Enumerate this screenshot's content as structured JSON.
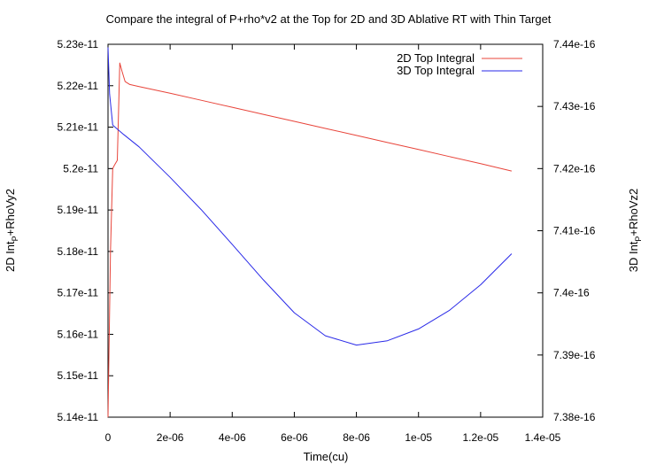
{
  "chart_data": {
    "type": "line",
    "title": "Compare the integral of P+rho*v2 at the Top for 2D and 3D Ablative RT with Thin Target",
    "xlabel": "Time(cu)",
    "ylabel_left": {
      "pre": "2D Int",
      "sub": "P",
      "post": "+RhoVy2"
    },
    "ylabel_right": {
      "pre": "3D Int",
      "sub": "P",
      "post": "+RhoVz2"
    },
    "xlim": [
      0,
      1.4e-05
    ],
    "ylim_left": [
      5.14e-11,
      5.23e-11
    ],
    "ylim_right": [
      7.38e-16,
      7.44e-16
    ],
    "xticks": [
      {
        "value": 0,
        "label": "0"
      },
      {
        "value": 2e-06,
        "label": "2e-06"
      },
      {
        "value": 4e-06,
        "label": "4e-06"
      },
      {
        "value": 6e-06,
        "label": "6e-06"
      },
      {
        "value": 8e-06,
        "label": "8e-06"
      },
      {
        "value": 1e-05,
        "label": "1e-05"
      },
      {
        "value": 1.2e-05,
        "label": "1.2e-05"
      },
      {
        "value": 1.4e-05,
        "label": "1.4e-05"
      }
    ],
    "yticks_left": [
      {
        "value": 5.14e-11,
        "label": "5.14e-11"
      },
      {
        "value": 5.15e-11,
        "label": "5.15e-11"
      },
      {
        "value": 5.16e-11,
        "label": "5.16e-11"
      },
      {
        "value": 5.17e-11,
        "label": "5.17e-11"
      },
      {
        "value": 5.18e-11,
        "label": "5.18e-11"
      },
      {
        "value": 5.19e-11,
        "label": "5.19e-11"
      },
      {
        "value": 5.2e-11,
        "label": "5.2e-11"
      },
      {
        "value": 5.21e-11,
        "label": "5.21e-11"
      },
      {
        "value": 5.22e-11,
        "label": "5.22e-11"
      },
      {
        "value": 5.23e-11,
        "label": "5.23e-11"
      }
    ],
    "yticks_right": [
      {
        "value": 7.38e-16,
        "label": "7.38e-16"
      },
      {
        "value": 7.39e-16,
        "label": "7.39e-16"
      },
      {
        "value": 7.4e-16,
        "label": "7.4e-16"
      },
      {
        "value": 7.41e-16,
        "label": "7.41e-16"
      },
      {
        "value": 7.42e-16,
        "label": "7.42e-16"
      },
      {
        "value": 7.43e-16,
        "label": "7.43e-16"
      },
      {
        "value": 7.44e-16,
        "label": "7.44e-16"
      }
    ],
    "grid": false,
    "legend_position": "top-right",
    "series": [
      {
        "name": "2D Top Integral",
        "color": "#e8443a",
        "axis": "left",
        "x": [
          0,
          8e-08,
          1.5e-07,
          2.2e-07,
          3e-07,
          3.8e-07,
          4.5e-07,
          5.5e-07,
          7e-07,
          1e-06,
          2e-06,
          3e-06,
          4e-06,
          5e-06,
          6e-06,
          7e-06,
          8e-06,
          9e-06,
          1e-05,
          1.1e-05,
          1.2e-05,
          1.3e-05
        ],
        "y": [
          5.14e-11,
          5.18e-11,
          5.2e-11,
          5.201e-11,
          5.202e-11,
          5.2255e-11,
          5.2235e-11,
          5.221e-11,
          5.2203e-11,
          5.2198e-11,
          5.2182e-11,
          5.2165e-11,
          5.2148e-11,
          5.2131e-11,
          5.2114e-11,
          5.2097e-11,
          5.208e-11,
          5.2063e-11,
          5.2046e-11,
          5.2029e-11,
          5.2012e-11,
          5.1994e-11
        ]
      },
      {
        "name": "3D Top Integral",
        "color": "#2a2ae8",
        "axis": "right",
        "x": [
          0,
          5e-08,
          1.5e-07,
          5e-07,
          1e-06,
          2e-06,
          3e-06,
          4e-06,
          5e-06,
          6e-06,
          7e-06,
          8e-06,
          9e-06,
          1e-05,
          1.1e-05,
          1.2e-05,
          1.3e-05
        ],
        "y": [
          7.4395e-16,
          7.432e-16,
          7.427e-16,
          7.4255e-16,
          7.4235e-16,
          7.4186e-16,
          7.4134e-16,
          7.4078e-16,
          7.4021e-16,
          7.3968e-16,
          7.3931e-16,
          7.3916e-16,
          7.3923e-16,
          7.3942e-16,
          7.3972e-16,
          7.4013e-16,
          7.4063e-16
        ]
      }
    ]
  }
}
